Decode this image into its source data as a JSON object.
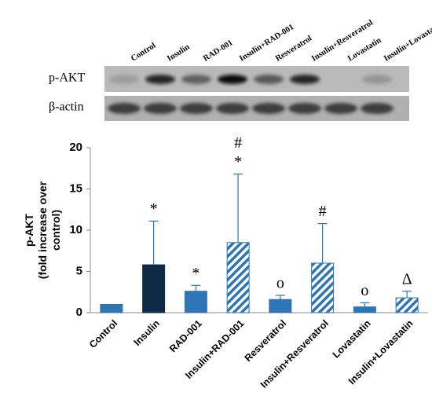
{
  "blot": {
    "row_labels": [
      "p-AKT",
      "β-actin"
    ]
  },
  "chart_data": {
    "type": "bar",
    "categories": [
      "Control",
      "Insulin",
      "RAD-001",
      "Insulin+RAD-001",
      "Resveratrol",
      "Insulin+Resveratrol",
      "Lovastatin",
      "Insulin+Lovastatin"
    ],
    "values": [
      1,
      5.8,
      2.6,
      8.5,
      1.6,
      6.0,
      0.7,
      1.8
    ],
    "errors": [
      null,
      5.3,
      0.7,
      8.3,
      0.5,
      4.8,
      0.5,
      0.8
    ],
    "annotations": [
      [],
      [
        "*"
      ],
      [
        "*"
      ],
      [
        "*",
        "#"
      ],
      [
        "o"
      ],
      [
        "#"
      ],
      [
        "o"
      ],
      [
        "Δ"
      ]
    ],
    "colors": [
      "#2e75b6",
      "#0f2a47",
      "#2e75b6",
      "#2e75b6",
      "#2e75b6",
      "#2e75b6",
      "#2e75b6",
      "#2e75b6"
    ],
    "hatched": [
      false,
      false,
      false,
      true,
      false,
      true,
      false,
      true
    ],
    "ylabel": [
      "p-AKT",
      "(fold increase over",
      "control)"
    ],
    "ylim": [
      0,
      20
    ],
    "yticks": [
      0,
      5,
      10,
      15,
      20
    ],
    "grid": false
  }
}
